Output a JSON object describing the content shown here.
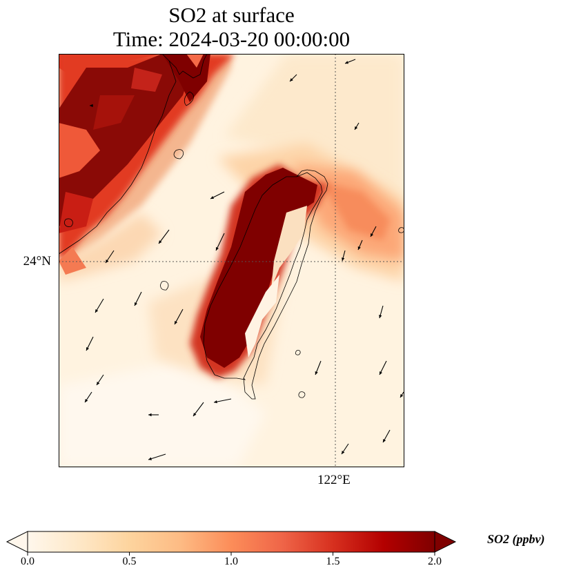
{
  "title": {
    "line1": "SO2 at surface",
    "line2": "Time: 2024-03-20 00:00:00"
  },
  "axes": {
    "lat_tick": {
      "value": 24,
      "label": "24°N"
    },
    "lon_tick": {
      "value": 122,
      "label": "122°E"
    }
  },
  "colorbar": {
    "label": "SO2 (ppbv)",
    "min": 0.0,
    "max": 2.0,
    "extend": "both",
    "colormap": "OrRd-like",
    "ticks": [
      {
        "value": 0.0,
        "label": "0.0"
      },
      {
        "value": 0.5,
        "label": "0.5"
      },
      {
        "value": 1.0,
        "label": "1.0"
      },
      {
        "value": 1.5,
        "label": "1.5"
      },
      {
        "value": 2.0,
        "label": "2.0"
      }
    ],
    "colors": [
      "#fff7ec",
      "#fee8c8",
      "#fdd49e",
      "#fdbb84",
      "#fc8d59",
      "#ef6548",
      "#d7301f",
      "#b30000",
      "#7f0000"
    ]
  },
  "map": {
    "gridlines": "dotted",
    "features": [
      "coastline",
      "wind-vectors",
      "so2-field"
    ]
  }
}
